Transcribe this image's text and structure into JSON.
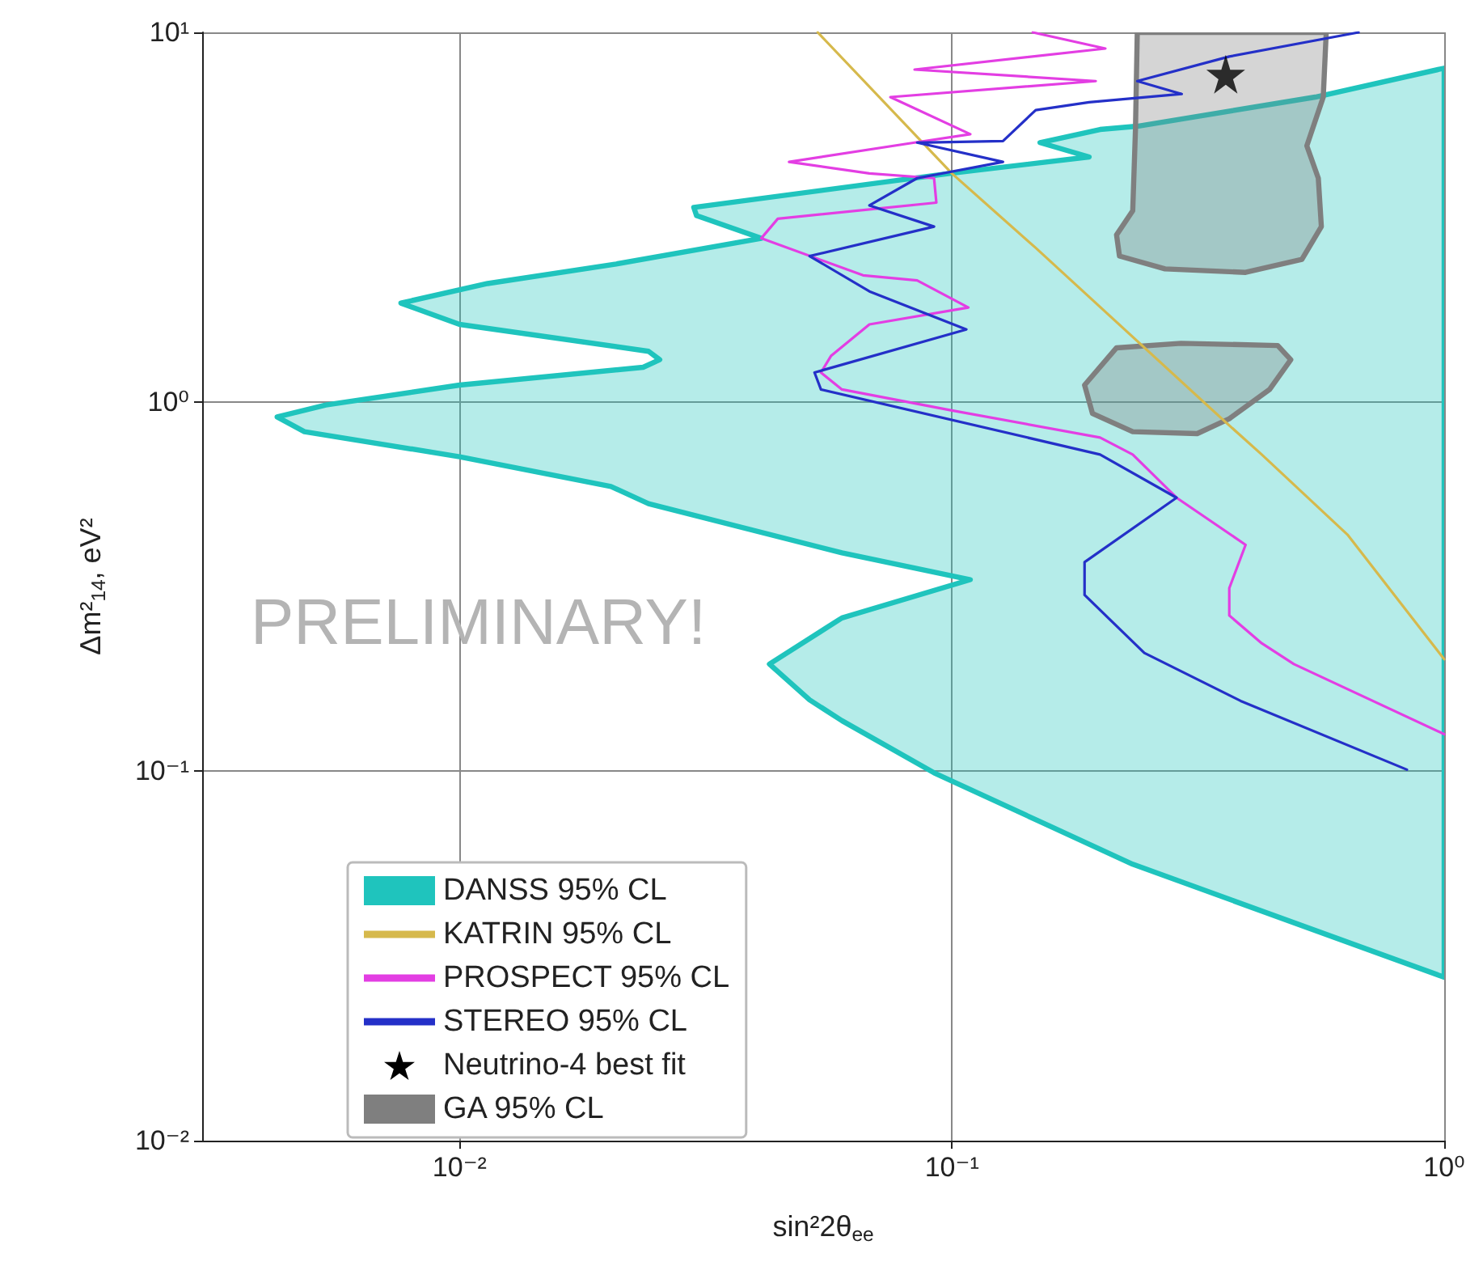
{
  "chart_data": {
    "type": "line",
    "xlabel": "sin²2θ$_{ee}$",
    "ylabel": "Δm²$_{14}$, eV²",
    "xlim": [
      0.003,
      1
    ],
    "ylim": [
      0.01,
      10
    ],
    "xticks": [
      {
        "value": 0.01,
        "label": "10⁻²"
      },
      {
        "value": 0.1,
        "label": "10⁻¹"
      },
      {
        "value": 1,
        "label": "10⁰"
      }
    ],
    "yticks": [
      {
        "value": 0.01,
        "label": "10⁻²"
      },
      {
        "value": 0.1,
        "label": "10⁻¹"
      },
      {
        "value": 1,
        "label": "10⁰"
      },
      {
        "value": 10,
        "label": "10¹"
      }
    ],
    "log": "xy",
    "grid": true,
    "legend": "bottom left",
    "annotations": [
      "PRELIMINARY!"
    ],
    "series": [
      {
        "name": "DANSS 95% CL",
        "type": "area",
        "color": "#1fc4bd",
        "x": [
          1,
          0.547,
          0.238,
          0.2,
          0.151,
          0.19,
          0.099,
          0.0299,
          0.0303,
          0.041,
          0.0208,
          0.0114,
          0.0076,
          0.01,
          0.0242,
          0.0255,
          0.0236,
          0.01,
          0.00535,
          0.00426,
          0.00484,
          0.01,
          0.0203,
          0.0242,
          0.0598,
          0.109,
          0.0598,
          0.0426,
          0.0514,
          0.0598,
          0.092,
          0.233,
          1
        ],
        "values": [
          8.0,
          6.68,
          5.57,
          5.46,
          5.03,
          4.6,
          4.15,
          3.36,
          3.19,
          2.77,
          2.36,
          2.09,
          1.85,
          1.62,
          1.37,
          1.3,
          1.24,
          1.11,
          0.98,
          0.91,
          0.83,
          0.71,
          0.59,
          0.53,
          0.39,
          0.33,
          0.26,
          0.195,
          0.156,
          0.137,
          0.099,
          0.056,
          0.0277
        ]
      },
      {
        "name": "KATRIN 95% CL",
        "color": "#d6b94c",
        "x": [
          0.0534,
          0.1,
          0.148,
          0.358,
          0.426,
          0.636,
          1
        ],
        "values": [
          10,
          4.15,
          2.61,
          0.886,
          0.72,
          0.437,
          0.201
        ]
      },
      {
        "name": "PROSPECT 95% CL",
        "color": "#e33ee3",
        "x": [
          0.146,
          0.205,
          0.084,
          0.196,
          0.075,
          0.109,
          0.084,
          0.0467,
          0.068,
          0.092,
          0.093,
          0.0443,
          0.041,
          0.066,
          0.085,
          0.108,
          0.068,
          0.0568,
          0.0542,
          0.0598,
          0.099,
          0.2,
          0.233,
          0.286,
          0.395,
          0.366,
          0.366,
          0.426,
          0.495,
          1
        ],
        "values": [
          10,
          9.04,
          7.93,
          7.38,
          6.68,
          5.3,
          5.03,
          4.46,
          4.15,
          4.03,
          3.46,
          3.13,
          2.77,
          2.2,
          2.13,
          1.8,
          1.62,
          1.33,
          1.2,
          1.08,
          0.95,
          0.8,
          0.72,
          0.55,
          0.41,
          0.313,
          0.264,
          0.222,
          0.195,
          0.126
        ]
      },
      {
        "name": "STEREO 95% CL",
        "color": "#2430c8",
        "x": [
          0.67,
          0.366,
          0.238,
          0.293,
          0.19,
          0.148,
          0.127,
          0.085,
          0.127,
          0.085,
          0.068,
          0.092,
          0.0514,
          0.068,
          0.107,
          0.0526,
          0.0542,
          0.2,
          0.286,
          0.186,
          0.186,
          0.246,
          0.386,
          0.84
        ],
        "values": [
          10,
          8.6,
          7.38,
          6.81,
          6.47,
          6.16,
          5.08,
          5.03,
          4.46,
          4.03,
          3.4,
          2.98,
          2.48,
          1.99,
          1.57,
          1.2,
          1.08,
          0.72,
          0.55,
          0.368,
          0.3,
          0.209,
          0.155,
          0.101
        ]
      },
      {
        "name": "Neutrino-4 best fit",
        "type": "scatter",
        "marker": "star",
        "color": "#000000",
        "x": [
          0.36
        ],
        "values": [
          7.7
        ]
      },
      {
        "name": "GA 95% CL",
        "type": "area",
        "color": "#7f7f7f",
        "x": [
          0.238,
          0.576,
          0.568,
          0.526,
          0.555,
          0.563,
          0.514,
          0.395,
          0.271,
          0.219,
          0.216,
          0.233,
          0.236,
          null,
          0.216,
          0.292,
          0.459,
          0.488,
          0.442,
          0.366,
          0.315,
          0.233,
          0.193,
          0.186
        ],
        "values": [
          10,
          10,
          6.68,
          4.93,
          4.03,
          2.98,
          2.43,
          2.24,
          2.29,
          2.48,
          2.83,
          3.29,
          5.46,
          null,
          1.4,
          1.44,
          1.42,
          1.3,
          1.08,
          0.9,
          0.82,
          0.83,
          0.93,
          1.11
        ]
      }
    ]
  }
}
